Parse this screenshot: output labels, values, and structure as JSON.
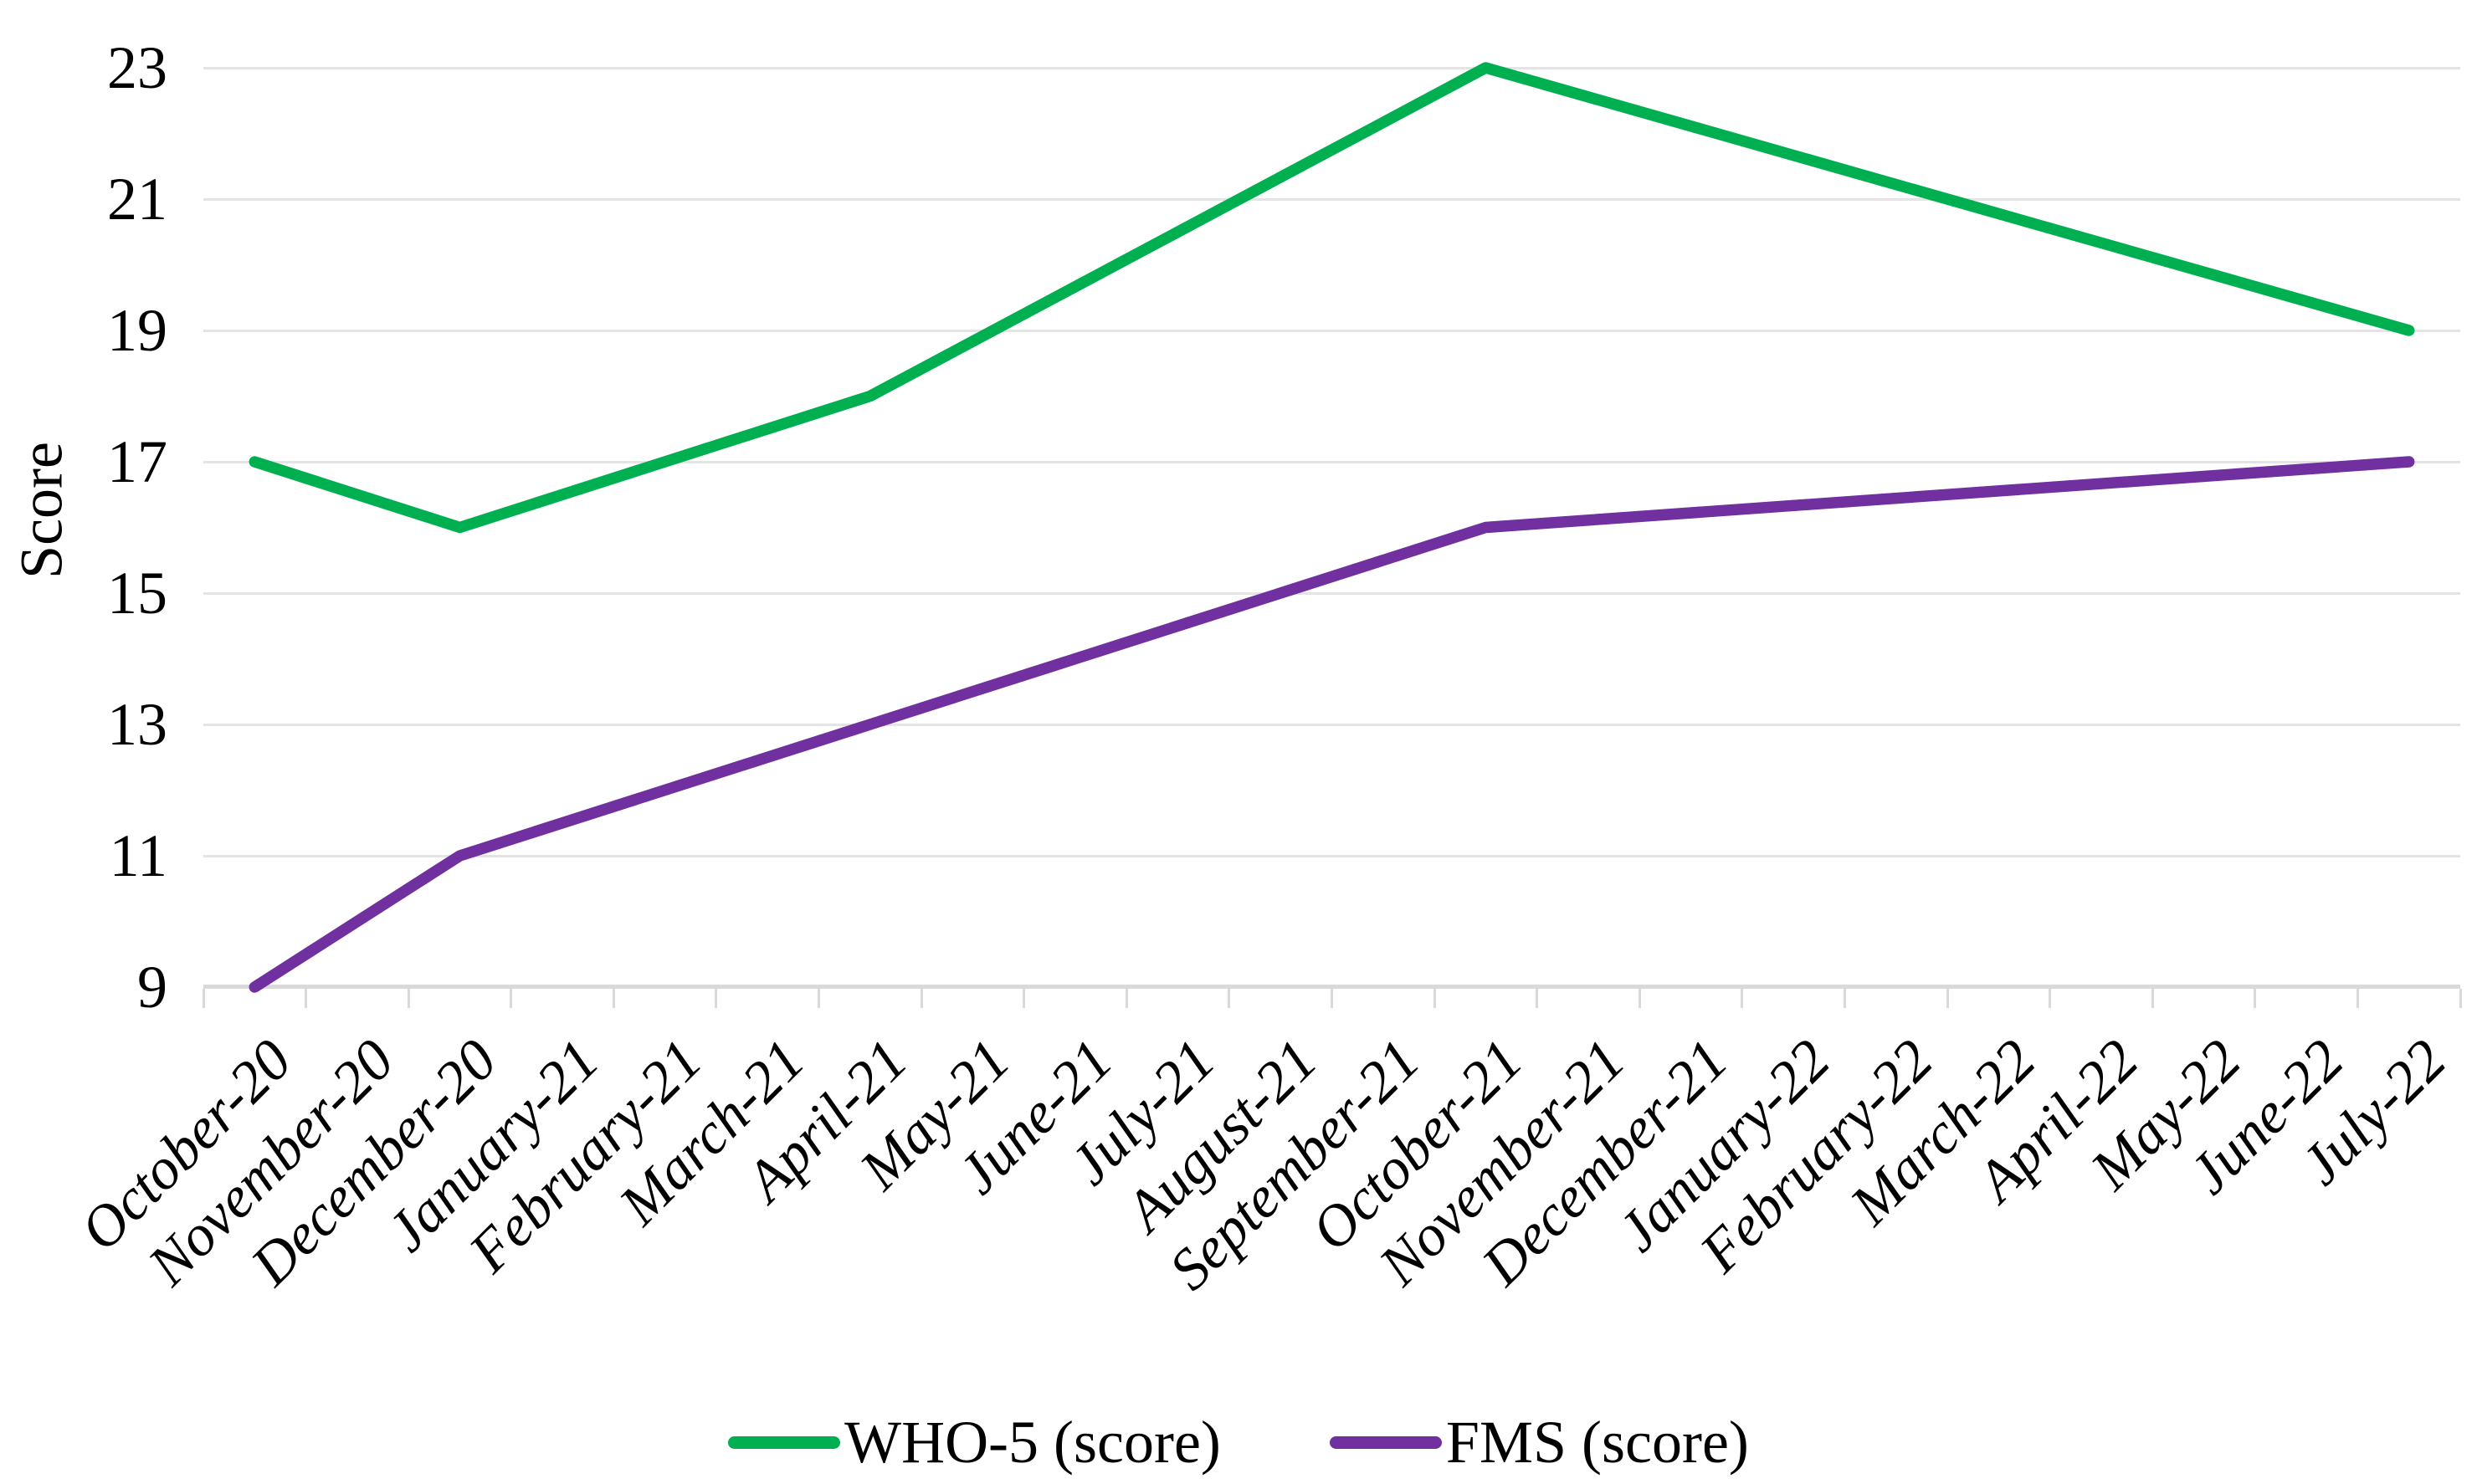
{
  "chart_data": {
    "type": "line",
    "title": "",
    "ylabel": "Score",
    "xlabel": "",
    "ylim": [
      9,
      23
    ],
    "ytick_step": 2,
    "yticks": [
      23,
      21,
      19,
      17,
      15,
      13,
      11,
      9
    ],
    "grid": "horizontal",
    "legend_position": "bottom",
    "categories": [
      "October-20",
      "November-20",
      "December-20",
      "January-21",
      "February-21",
      "March-21",
      "April-21",
      "May-21",
      "June-21",
      "July-21",
      "August-21",
      "September-21",
      "October-21",
      "November-21",
      "December-21",
      "January-22",
      "February-22",
      "March-22",
      "April-22",
      "May-22",
      "June-22",
      "July-22"
    ],
    "series": [
      {
        "name": "WHO-5 (score)",
        "color": "#00B050",
        "points": [
          [
            "October-20",
            17
          ],
          [
            "December-20",
            16
          ],
          [
            "April-21",
            18
          ],
          [
            "October-21",
            23
          ],
          [
            "July-22",
            19
          ]
        ]
      },
      {
        "name": "FMS (score)",
        "color": "#7030A0",
        "points": [
          [
            "October-20",
            9
          ],
          [
            "December-20",
            11
          ],
          [
            "April-21",
            13
          ],
          [
            "October-21",
            16
          ],
          [
            "July-22",
            17
          ]
        ]
      }
    ]
  }
}
